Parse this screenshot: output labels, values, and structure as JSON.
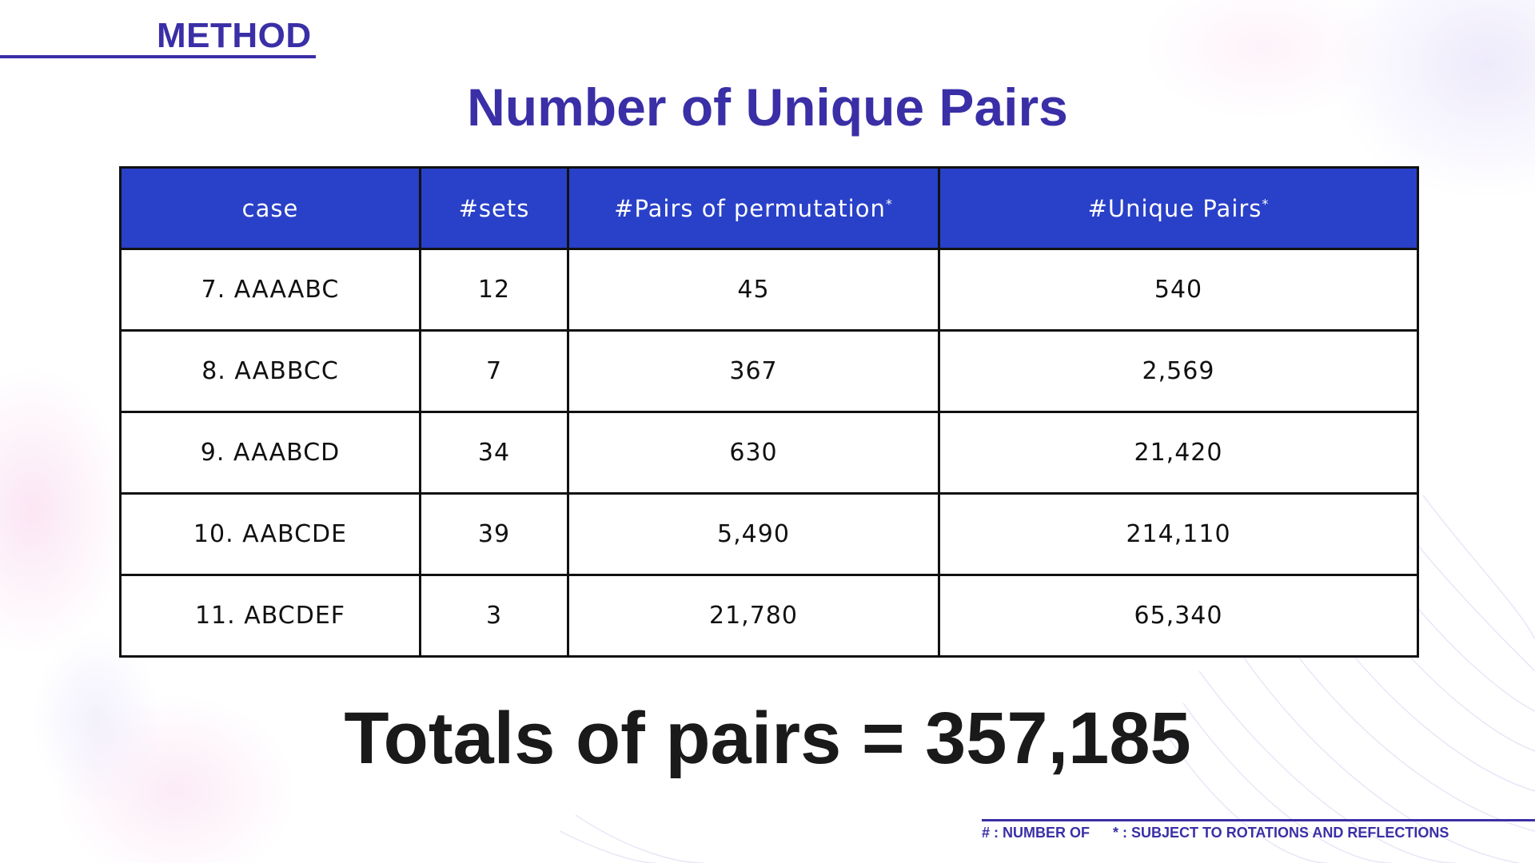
{
  "section": {
    "label": "METHOD"
  },
  "title": "Number of Unique Pairs",
  "table": {
    "headers": [
      {
        "label": "case",
        "marker": ""
      },
      {
        "label": "#sets",
        "marker": ""
      },
      {
        "label": "#Pairs of permutation",
        "marker": "*"
      },
      {
        "label": "#Unique Pairs",
        "marker": "*"
      }
    ],
    "rows": [
      [
        "7. AAAABC",
        "12",
        "45",
        "540"
      ],
      [
        "8. AABBCC",
        "7",
        "367",
        "2,569"
      ],
      [
        "9. AAABCD",
        "34",
        "630",
        "21,420"
      ],
      [
        "10. AABCDE",
        "39",
        "5,490",
        "214,110"
      ],
      [
        "11. ABCDEF",
        "3",
        "21,780",
        "65,340"
      ]
    ]
  },
  "totals": "Totals of pairs = 357,185",
  "footnotes": {
    "hash": "# : NUMBER OF",
    "star": "* : SUBJECT TO ROTATIONS AND REFLECTIONS"
  },
  "colors": {
    "accent": "#3a2fa6",
    "header_bg": "#2940c8",
    "text": "#1a1a1a"
  }
}
